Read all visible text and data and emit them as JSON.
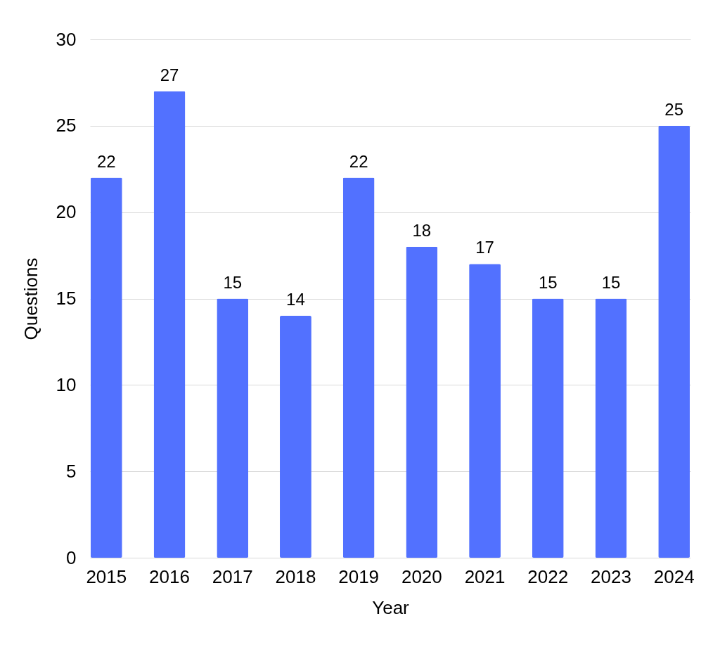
{
  "chart_data": {
    "type": "bar",
    "xlabel": "Year",
    "ylabel": "Questions",
    "categories": [
      "2015",
      "2016",
      "2017",
      "2018",
      "2019",
      "2020",
      "2021",
      "2022",
      "2023",
      "2024"
    ],
    "values": [
      22,
      27,
      15,
      14,
      22,
      18,
      17,
      15,
      15,
      25
    ],
    "color": "#5271ff",
    "ylim": [
      0,
      30
    ],
    "yticks": [
      0,
      5,
      10,
      15,
      20,
      25,
      30
    ],
    "grid": "y",
    "data_labels": true
  }
}
